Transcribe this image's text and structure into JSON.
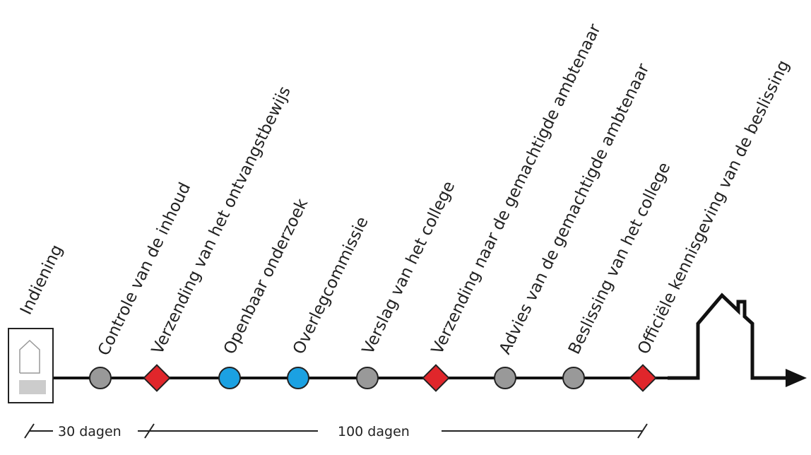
{
  "steps": [
    "Indiening",
    "Controle van de inhoud",
    "Verzending van het ontvangstbewijs",
    "Openbaar onderzoek",
    "Overlegcommissie",
    "Verslag van het college",
    "Verzending naar de gemachtigde ambtenaar",
    "Advies van de gemachtigde ambtenaar",
    "Beslissing van het college",
    "Officiële kennisgeving van de beslissing"
  ],
  "durations": [
    "30 dagen",
    "100 dagen"
  ]
}
